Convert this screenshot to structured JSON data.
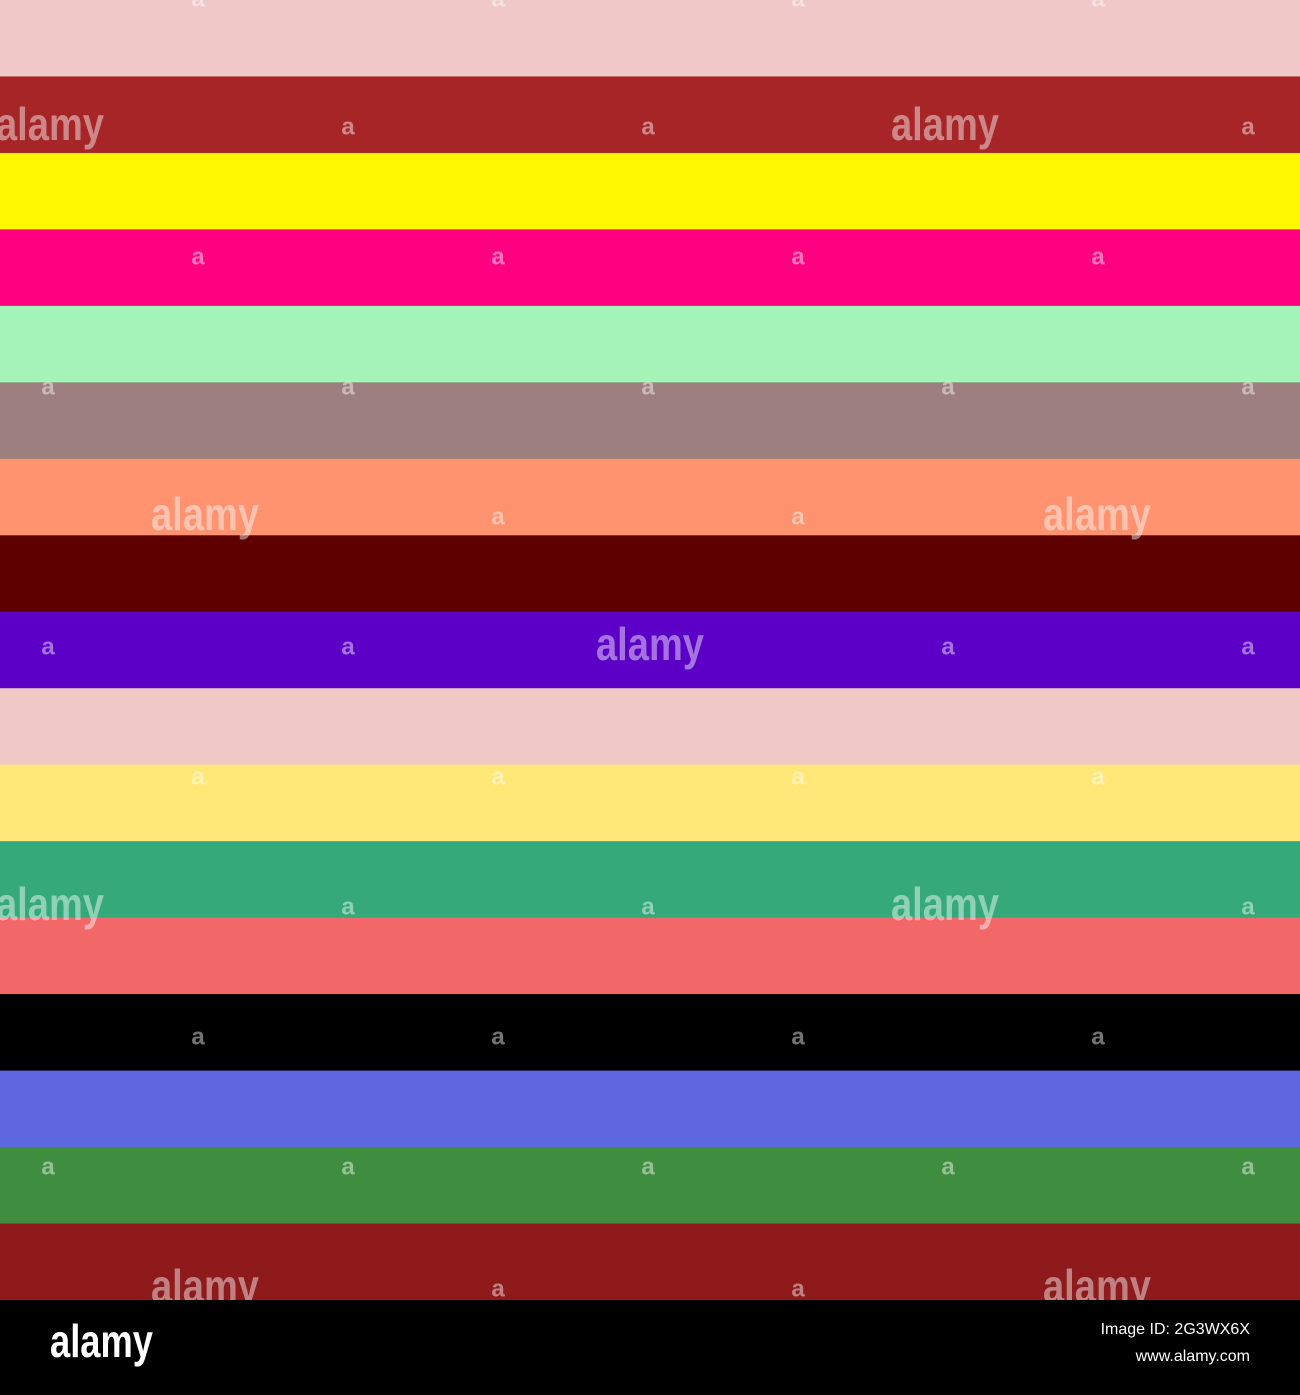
{
  "stripes": [
    "#f0c8c8",
    "#a72527",
    "#fff700",
    "#ff0080",
    "#a3f4b6",
    "#9d7f80",
    "#ff9370",
    "#5e0000",
    "#5c00c8",
    "#f0c8c8",
    "#ffe877",
    "#35a97a",
    "#f26868",
    "#000000",
    "#5e66e0",
    "#3f8e3f",
    "#8e1a1c"
  ],
  "watermark_rows": [
    [
      "a",
      "a",
      "a",
      "a"
    ],
    [
      "alamy",
      "a",
      "a",
      "alamy",
      "a"
    ],
    [
      "a",
      "a",
      "a",
      "a"
    ],
    [
      "a",
      "a",
      "a",
      "a",
      "a"
    ],
    [
      "alamy",
      "a",
      "a",
      "alamy"
    ],
    [
      "a",
      "a",
      "alamy",
      "a",
      "a"
    ],
    [
      "a",
      "a",
      "a",
      "a"
    ],
    [
      "alamy",
      "a",
      "a",
      "alamy",
      "a"
    ],
    [
      "a",
      "a",
      "a",
      "a"
    ],
    [
      "a",
      "a",
      "a",
      "a",
      "a"
    ],
    [
      "alamy",
      "a",
      "a",
      "alamy"
    ]
  ],
  "footer": {
    "logo": "alamy",
    "image_id": "Image ID: 2G3WX6X",
    "site": "www.alamy.com"
  }
}
